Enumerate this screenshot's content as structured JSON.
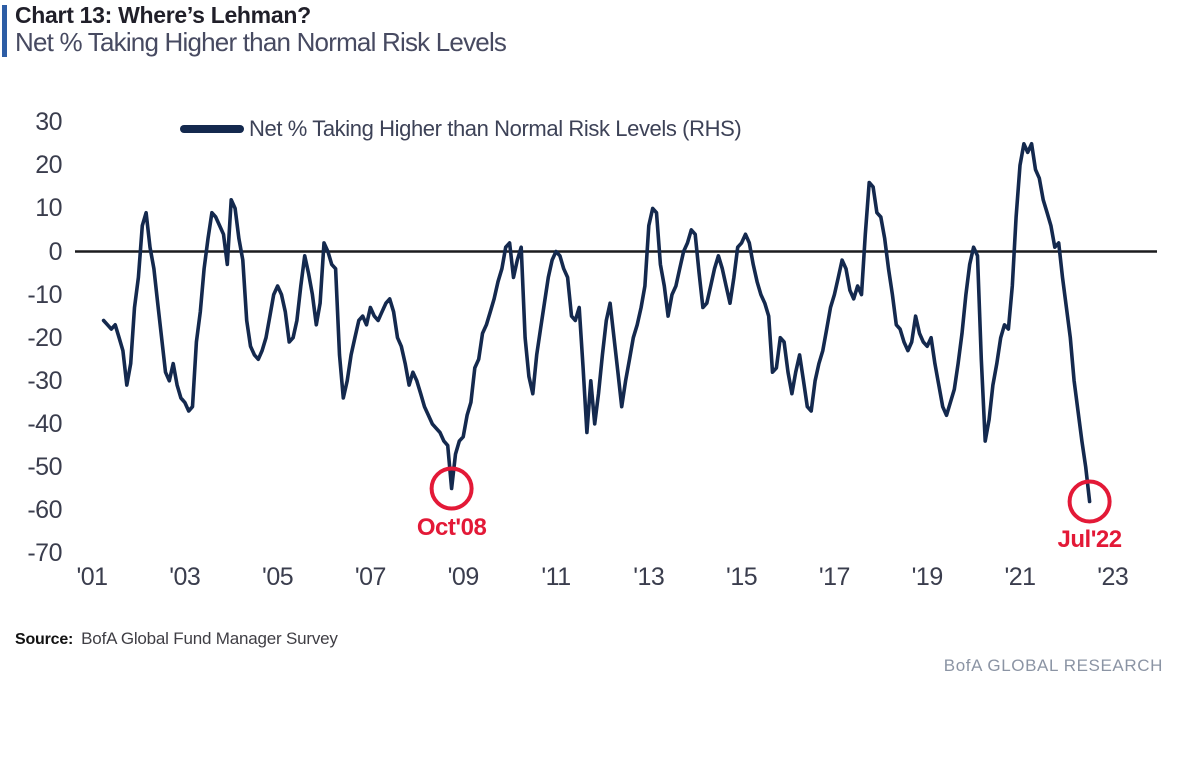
{
  "header": {
    "title": "Chart 13: Where’s Lehman?",
    "subtitle": "Net % Taking Higher than Normal Risk Levels"
  },
  "legend": {
    "label": "Net % Taking Higher than Normal Risk Levels (RHS)"
  },
  "footer": {
    "source_label": "Source:",
    "source_text": "BofA Global Fund Manager Survey",
    "branding": "BofA GLOBAL RESEARCH"
  },
  "colors": {
    "accent_bar": "#2d5da5",
    "line": "#14294e",
    "zero_line": "#1c1c1e",
    "annotation": "#e31937",
    "axis_text": "#3a3d4d",
    "legend_text": "#3d4257",
    "title_text": "#201f29",
    "subtitle_text": "#474a61",
    "branding_text": "#8b94a4",
    "source_text": "#3f3e44"
  },
  "chart_data": {
    "type": "line",
    "title": "Chart 13: Where’s Lehman?",
    "subtitle": "Net % Taking Higher than Normal Risk Levels",
    "legend_entries": [
      "Net % Taking Higher than Normal Risk Levels (RHS)"
    ],
    "legend_position": "top-left-inside",
    "grid": "zero-line-only",
    "y_axis": {
      "ticks": [
        30,
        20,
        10,
        0,
        -10,
        -20,
        -30,
        -40,
        -50,
        -60,
        -70
      ],
      "range": [
        -70,
        30
      ]
    },
    "x_axis": {
      "range_years": [
        2000.6,
        2023.9
      ],
      "ticks": [
        {
          "label": "'01",
          "year": 2001
        },
        {
          "label": "'03",
          "year": 2003
        },
        {
          "label": "'05",
          "year": 2005
        },
        {
          "label": "'07",
          "year": 2007
        },
        {
          "label": "'09",
          "year": 2009
        },
        {
          "label": "'11",
          "year": 2011
        },
        {
          "label": "'13",
          "year": 2013
        },
        {
          "label": "'15",
          "year": 2015
        },
        {
          "label": "'17",
          "year": 2017
        },
        {
          "label": "'19",
          "year": 2019
        },
        {
          "label": "'21",
          "year": 2021
        },
        {
          "label": "'23",
          "year": 2023
        }
      ]
    },
    "series": [
      {
        "name": "Net % Taking Higher than Normal Risk Levels (RHS)",
        "frequency": "monthly",
        "start_year": 2001,
        "start_month": 4,
        "values": [
          -16,
          -17,
          -18,
          -17,
          -20,
          -23,
          -31,
          -26,
          -13,
          -6,
          6,
          9,
          1,
          -4,
          -12,
          -20,
          -28,
          -30,
          -26,
          -31,
          -34,
          -35,
          -37,
          -36,
          -21,
          -14,
          -4,
          3,
          9,
          8,
          6,
          4,
          -3,
          12,
          10,
          3,
          -2,
          -16,
          -22,
          -24,
          -25,
          -23,
          -20,
          -15,
          -10,
          -8,
          -10,
          -14,
          -21,
          -20,
          -16,
          -8,
          -1,
          -5,
          -10,
          -17,
          -12,
          2,
          0,
          -3,
          -4,
          -24,
          -34,
          -30,
          -24,
          -20,
          -16,
          -15,
          -17,
          -13,
          -15,
          -16,
          -14,
          -12,
          -11,
          -14,
          -20,
          -22,
          -26,
          -31,
          -28,
          -30,
          -33,
          -36,
          -38,
          -40,
          -41,
          -42,
          -44,
          -45,
          -55,
          -47,
          -44,
          -43,
          -38,
          -35,
          -27,
          -25,
          -19,
          -17,
          -14,
          -11,
          -7,
          -4,
          1,
          2,
          -6,
          -2,
          1,
          -20,
          -29,
          -33,
          -24,
          -18,
          -12,
          -6,
          -2,
          0,
          -1,
          -4,
          -6,
          -15,
          -16,
          -13,
          -27,
          -42,
          -30,
          -40,
          -33,
          -24,
          -16,
          -12,
          -20,
          -28,
          -36,
          -30,
          -25,
          -20,
          -17,
          -13,
          -8,
          6,
          10,
          9,
          -3,
          -8,
          -15,
          -10,
          -8,
          -4,
          0,
          2,
          5,
          4,
          -5,
          -13,
          -12,
          -8,
          -4,
          -1,
          -4,
          -8,
          -12,
          -6,
          1,
          2,
          4,
          2,
          -3,
          -7,
          -10,
          -12,
          -15,
          -28,
          -27,
          -20,
          -21,
          -28,
          -33,
          -28,
          -24,
          -30,
          -36,
          -37,
          -30,
          -26,
          -23,
          -18,
          -13,
          -10,
          -6,
          -2,
          -4,
          -9,
          -11,
          -8,
          -10,
          4,
          16,
          15,
          9,
          8,
          3,
          -4,
          -10,
          -17,
          -18,
          -21,
          -23,
          -21,
          -15,
          -19,
          -21,
          -22,
          -20,
          -26,
          -31,
          -36,
          -38,
          -35,
          -32,
          -26,
          -19,
          -10,
          -3,
          1,
          -1,
          -25,
          -44,
          -39,
          -31,
          -26,
          -20,
          -17,
          -18,
          -8,
          8,
          20,
          25,
          23,
          25,
          19,
          17,
          12,
          9,
          6,
          1,
          2,
          -6,
          -13,
          -20,
          -30,
          -37,
          -44,
          -50,
          -58
        ]
      }
    ],
    "annotations": [
      {
        "label": "Oct'08",
        "year": 2008,
        "month": 10,
        "value": -55
      },
      {
        "label": "Jul'22",
        "year": 2022,
        "month": 7,
        "value": -58
      }
    ]
  }
}
